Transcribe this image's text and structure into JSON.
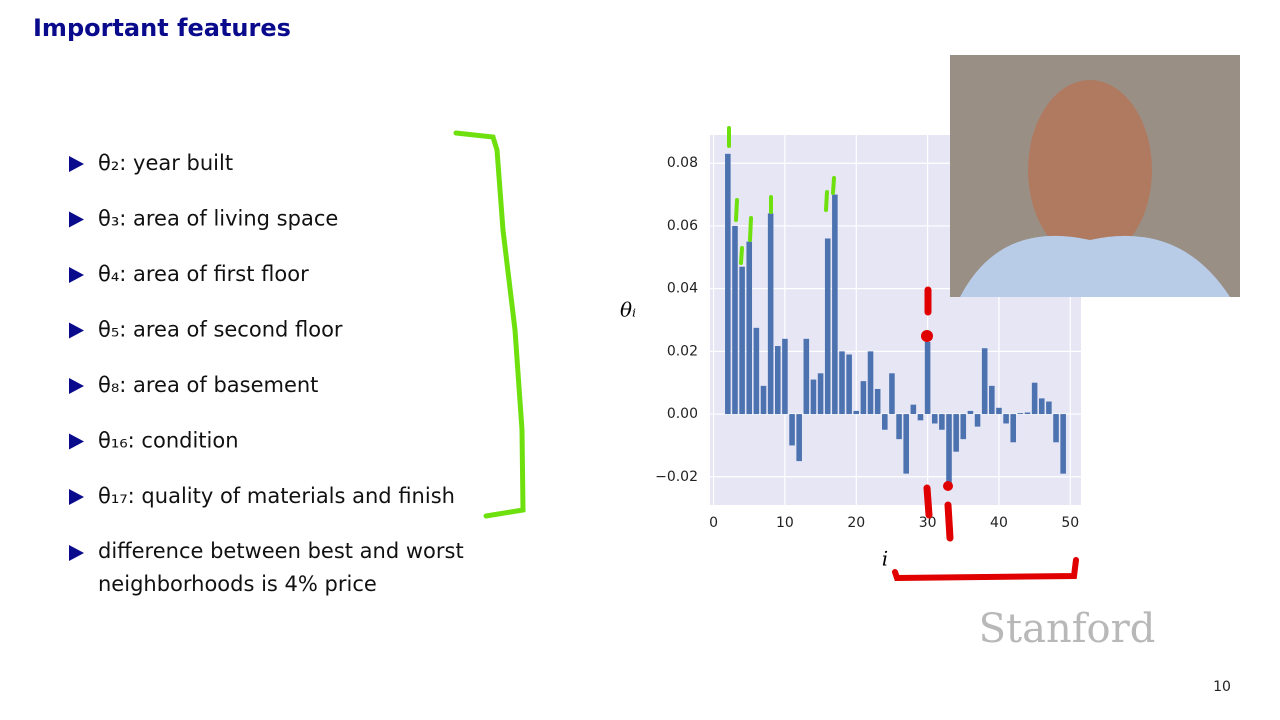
{
  "title": "Important features",
  "bullets": [
    "θ₂: year built",
    "θ₃: area of living space",
    "θ₄: area of first floor",
    "θ₅: area of second floor",
    "θ₈: area of basement",
    "θ₁₆: condition",
    "θ₁₇: quality of materials and finish"
  ],
  "last_bullet": [
    "difference between best and worst",
    "neighborhoods is 4% price"
  ],
  "chart_data": {
    "type": "bar",
    "x_label": "i",
    "y_label": "θᵢ",
    "x": [
      2,
      3,
      4,
      5,
      6,
      7,
      8,
      9,
      10,
      11,
      12,
      13,
      14,
      15,
      16,
      17,
      18,
      19,
      20,
      21,
      22,
      23,
      24,
      25,
      26,
      27,
      28,
      29,
      30,
      31,
      32,
      33,
      34,
      35,
      36,
      37,
      38,
      39,
      40,
      41,
      42,
      43,
      44,
      45,
      46,
      47,
      48,
      49
    ],
    "values": [
      0.083,
      0.06,
      0.047,
      0.055,
      0.0275,
      0.009,
      0.064,
      0.0217,
      0.024,
      -0.01,
      -0.015,
      0.024,
      0.011,
      0.013,
      0.056,
      0.07,
      0.02,
      0.019,
      0.001,
      0.0105,
      0.02,
      0.008,
      -0.005,
      0.013,
      -0.008,
      -0.019,
      0.003,
      -0.002,
      0.023,
      -0.003,
      -0.005,
      -0.022,
      -0.012,
      -0.008,
      0.001,
      -0.004,
      0.021,
      0.009,
      0.002,
      -0.003,
      -0.009,
      0.0003,
      0.0005,
      0.01,
      0.005,
      0.004,
      -0.009,
      -0.019
    ],
    "color": "#4c72b0",
    "background": "#e6e6f5",
    "grid": true,
    "xlim": [
      -0.5,
      51.5
    ],
    "ylim": [
      -0.029,
      0.089
    ],
    "xticks": [
      0,
      10,
      20,
      30,
      40,
      50
    ],
    "yticks": [
      {
        "value": -0.02,
        "label": "−0.02"
      },
      {
        "value": 0,
        "label": "0.00"
      },
      0.02,
      0.04,
      0.06,
      0.08
    ]
  },
  "logo": "Stanford",
  "page_number": "10"
}
